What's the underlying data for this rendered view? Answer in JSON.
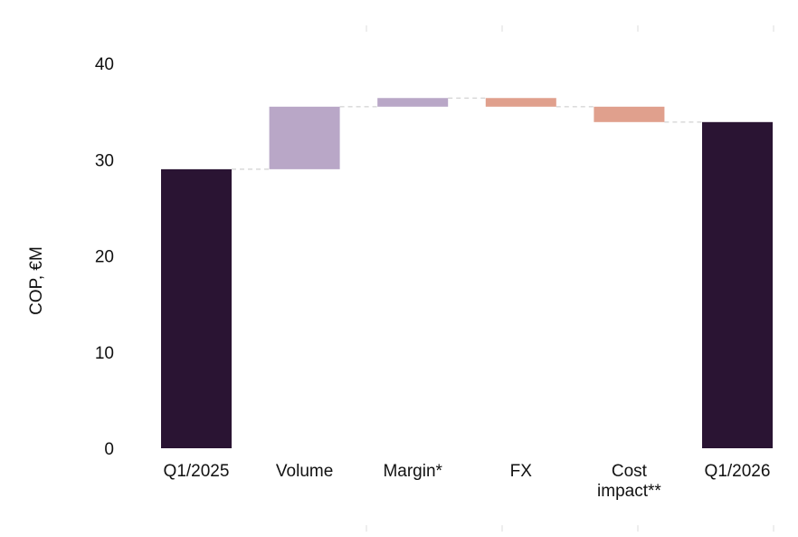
{
  "chart_data": {
    "type": "bar",
    "subtype": "waterfall",
    "title": "",
    "ylabel": "COP, €M",
    "xlabel": "",
    "ylim": [
      0,
      40
    ],
    "yticks": [
      0,
      10,
      20,
      30,
      40
    ],
    "grid": false,
    "legend": "none",
    "categories": [
      {
        "label": "Q1/2025",
        "lines": [
          "Q1/2025"
        ],
        "kind": "total",
        "value": 29.0,
        "color": "#2a1433"
      },
      {
        "label": "Volume",
        "lines": [
          "Volume"
        ],
        "kind": "delta",
        "value": 6.5,
        "color": "#b9a7c7"
      },
      {
        "label": "Margin*",
        "lines": [
          "Margin*"
        ],
        "kind": "delta",
        "value": 0.9,
        "color": "#b9a7c7"
      },
      {
        "label": "FX",
        "lines": [
          "FX"
        ],
        "kind": "delta",
        "value": -0.9,
        "color": "#e0a08d"
      },
      {
        "label": "Cost impact**",
        "lines": [
          "Cost",
          "impact**"
        ],
        "kind": "delta",
        "value": -1.6,
        "color": "#e0a08d"
      },
      {
        "label": "Q1/2026",
        "lines": [
          "Q1/2026"
        ],
        "kind": "total",
        "value": 33.9,
        "color": "#2a1433"
      }
    ],
    "connector_color": "#c8c8c8"
  }
}
